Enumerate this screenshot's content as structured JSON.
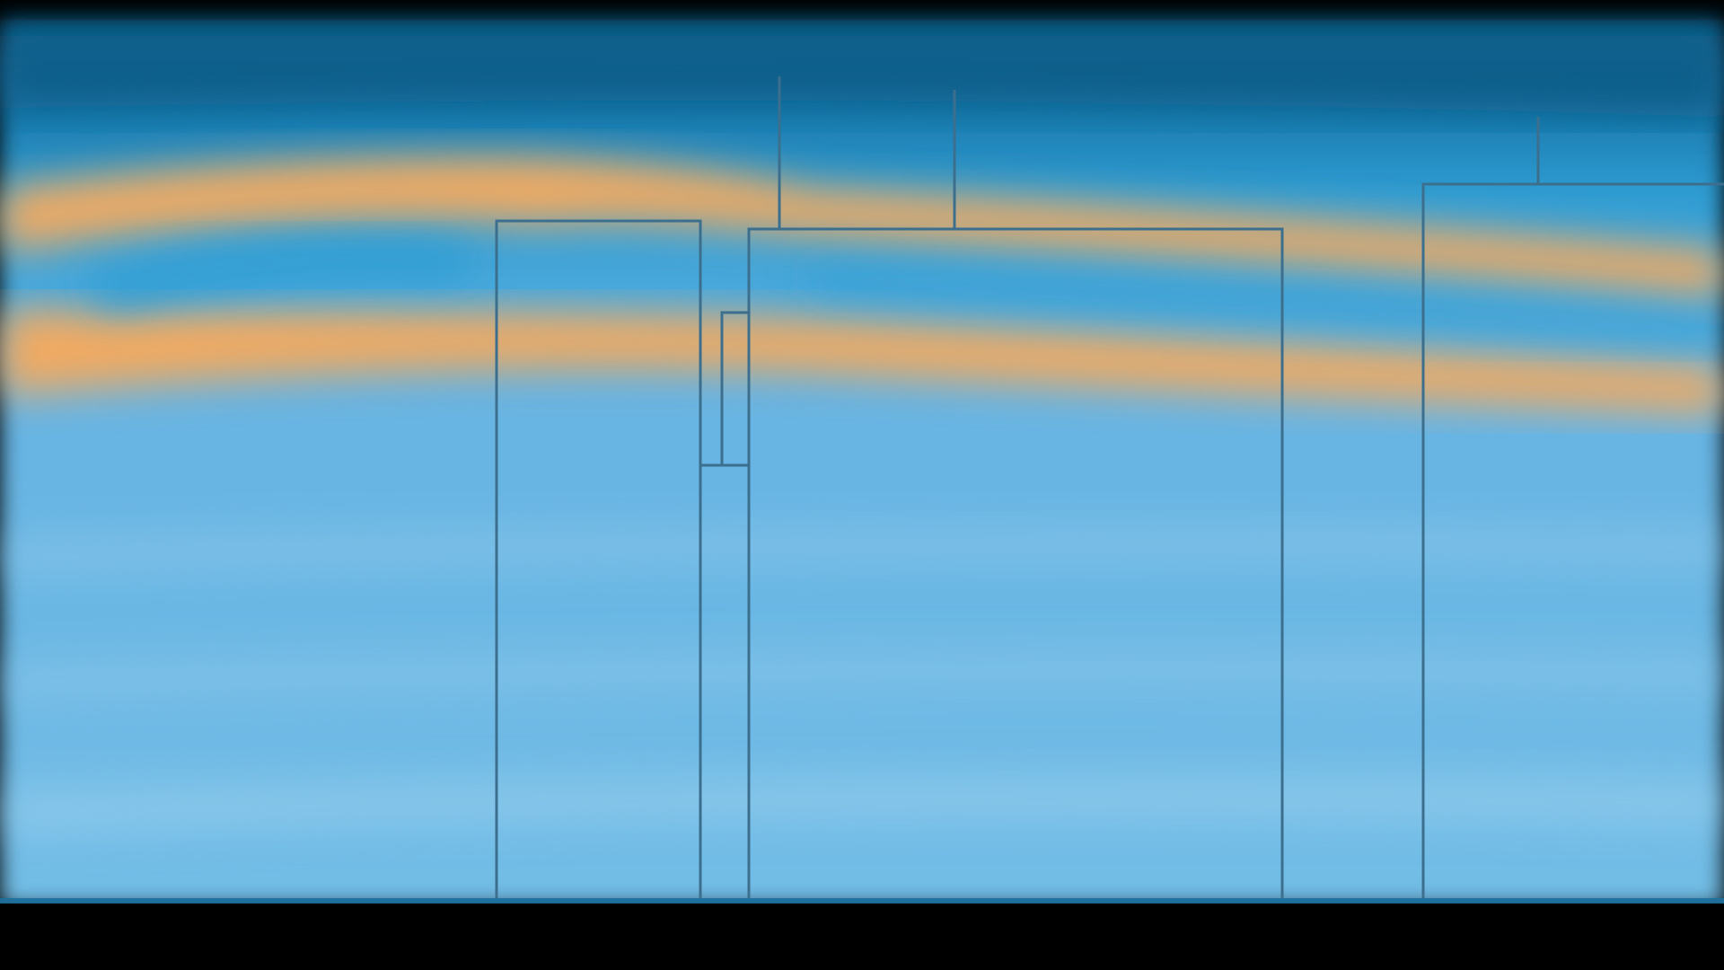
{
  "diagram": {
    "colors": {
      "frame": "#000000",
      "deep_band": "#0f5f8a",
      "upper_band": "#2f9dd3",
      "lower_field": "#6ab4e2",
      "lower_field_light": "#8fc8ea",
      "warm_band": "#f1aa62",
      "line": "#3c6f8e"
    }
  }
}
